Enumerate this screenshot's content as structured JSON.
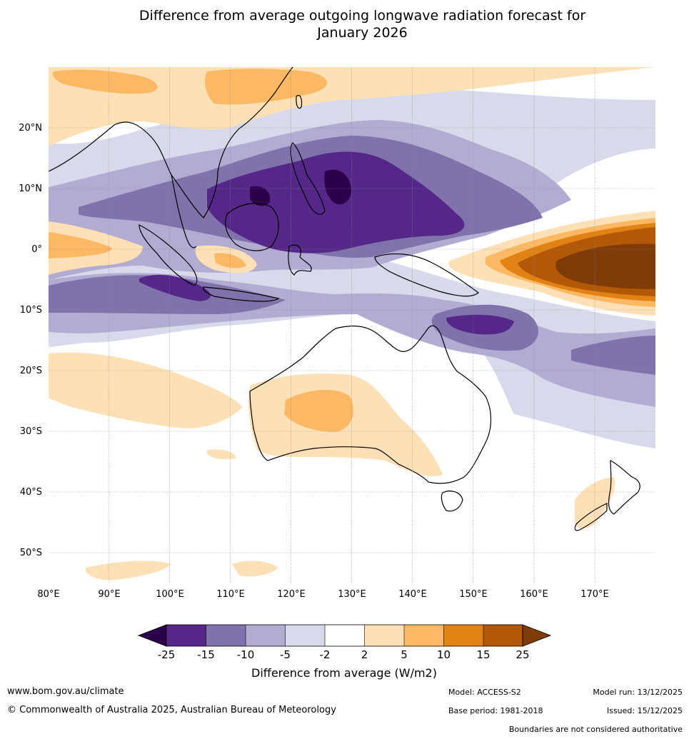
{
  "title_line1": "Difference from average outgoing longwave radiation forecast for",
  "title_line2": "January 2026",
  "map": {
    "lon_ticks": [
      "80°E",
      "90°E",
      "100°E",
      "110°E",
      "120°E",
      "130°E",
      "140°E",
      "150°E",
      "160°E",
      "170°E"
    ],
    "lat_ticks": [
      "20°N",
      "10°N",
      "0°",
      "10°S",
      "20°S",
      "30°S",
      "40°S",
      "50°S"
    ],
    "extent": {
      "lon_min": 80,
      "lon_max": 180,
      "lat_min": -55,
      "lat_max": 30
    },
    "gridline_color": "#888888"
  },
  "colorbar": {
    "title": "Difference from average (W/m2)",
    "levels": [
      "-25",
      "-15",
      "-10",
      "-5",
      "-2",
      "2",
      "5",
      "10",
      "15",
      "25"
    ],
    "colors": {
      "lt_m25": "#2d004b",
      "m25_m15": "#542788",
      "m15_m10": "#8073ac",
      "m10_m5": "#b2abd2",
      "m5_m2": "#d8daeb",
      "m2_2": "#ffffff",
      "p2_5": "#fee0b6",
      "p5_10": "#fdb863",
      "p10_15": "#e08214",
      "p15_25": "#b35806",
      "gt_25": "#7f3b08"
    }
  },
  "footer": {
    "website": "www.bom.gov.au/climate",
    "copyright": "© Commonwealth of Australia 2025, Australian Bureau of Meteorology",
    "model": "Model: ACCESS-S2",
    "base_period": "Base period: 1981-2018",
    "model_run": "Model run: 13/12/2025",
    "issued": "Issued: 15/12/2025",
    "disclaimer": "Boundaries are not considered authoritative"
  }
}
